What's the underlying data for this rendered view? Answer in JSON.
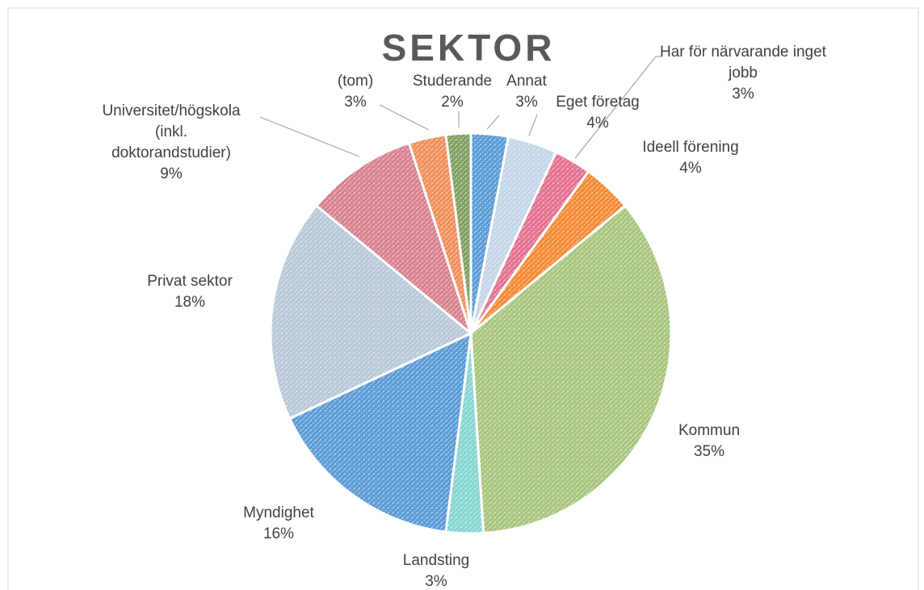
{
  "chart_data": {
    "type": "pie",
    "title": "SEKTOR",
    "categories": [
      "Annat",
      "Eget företag",
      "Har för närvarande inget jobb",
      "Ideell förening",
      "Kommun",
      "Landsting",
      "Myndighet",
      "Privat sektor",
      "Universitet/högskola (inkl. doktorandstudier)",
      "(tom)",
      "Studerande"
    ],
    "values": [
      3,
      4,
      3,
      4,
      35,
      3,
      16,
      18,
      9,
      3,
      2
    ],
    "value_labels": [
      "3%",
      "4%",
      "3%",
      "4%",
      "35%",
      "3%",
      "16%",
      "18%",
      "9%",
      "3%",
      "2%"
    ],
    "colors": [
      "#5b9bd5",
      "#c3d6e8",
      "#e4708f",
      "#f58a35",
      "#a7c57d",
      "#86d6cf",
      "#5b9bd5",
      "#b8c8d8",
      "#d9828f",
      "#f28f5c",
      "#7fa062"
    ]
  }
}
